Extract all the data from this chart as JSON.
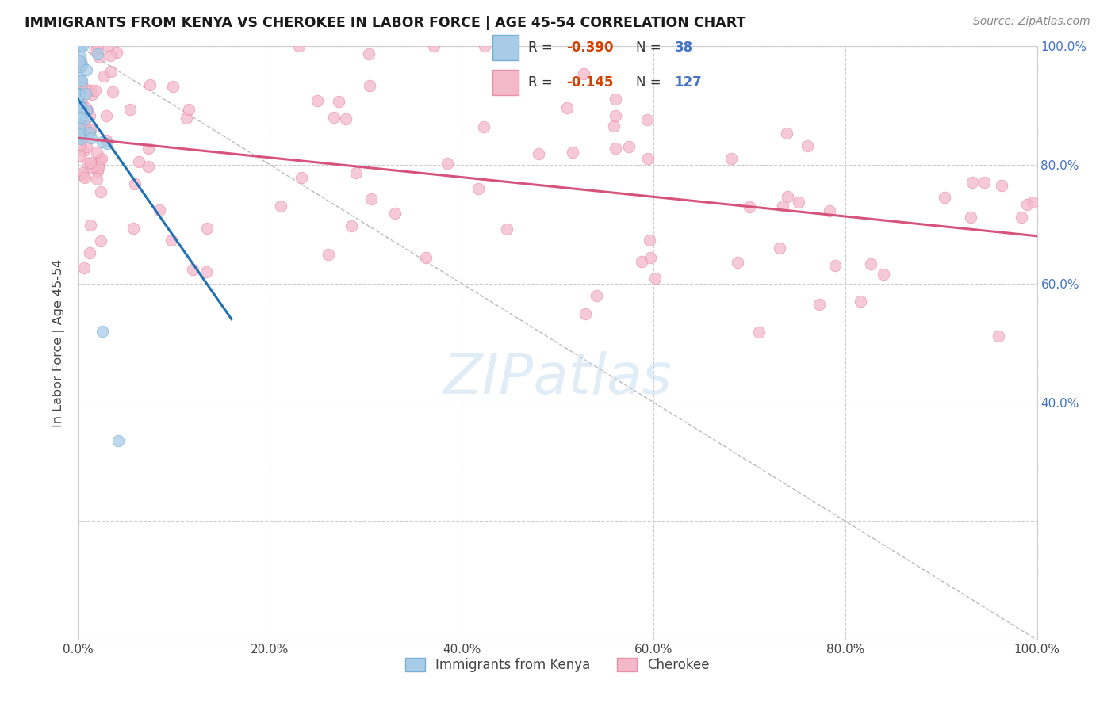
{
  "title": "IMMIGRANTS FROM KENYA VS CHEROKEE IN LABOR FORCE | AGE 45-54 CORRELATION CHART",
  "source": "Source: ZipAtlas.com",
  "ylabel": "In Labor Force | Age 45-54",
  "xlim": [
    0,
    1
  ],
  "ylim": [
    0,
    1
  ],
  "xtick_vals": [
    0.0,
    0.2,
    0.4,
    0.6,
    0.8,
    1.0
  ],
  "xtick_labels": [
    "0.0%",
    "20.0%",
    "40.0%",
    "60.0%",
    "80.0%",
    "100.0%"
  ],
  "right_ytick_vals": [
    0.0,
    0.2,
    0.4,
    0.6,
    0.8,
    1.0
  ],
  "right_ytick_labels": [
    "",
    "",
    "40.0%",
    "60.0%",
    "80.0%",
    "100.0%"
  ],
  "legend_r_kenya": "-0.390",
  "legend_n_kenya": "38",
  "legend_r_cherokee": "-0.145",
  "legend_n_cherokee": "127",
  "watermark": "ZIPatlas",
  "blue_scatter_color": "#a8cce8",
  "blue_scatter_edge": "#7aafd4",
  "pink_scatter_color": "#f4b8cb",
  "pink_scatter_edge": "#e890aa",
  "blue_line_color": "#2171b5",
  "pink_line_color": "#d6547c",
  "ref_line_color": "#bbbbbb",
  "background_color": "#ffffff",
  "grid_color": "#cccccc",
  "right_axis_color": "#4472c4",
  "watermark_color": "#c8ddef",
  "kenya_line_x0": 0.0,
  "kenya_line_x1": 0.16,
  "kenya_line_y0": 0.91,
  "kenya_line_y1": 0.54,
  "cherokee_line_x0": 0.0,
  "cherokee_line_x1": 1.0,
  "cherokee_line_y0": 0.845,
  "cherokee_line_y1": 0.68
}
